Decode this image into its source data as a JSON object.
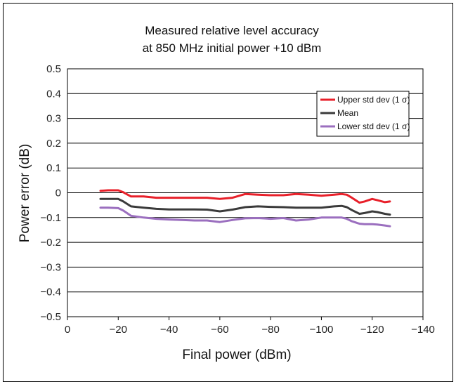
{
  "chart_data": {
    "type": "line",
    "title_lines": [
      "Measured relative level accuracy",
      "at 850 MHz initial power +10 dBm"
    ],
    "xlabel": "Final power (dBm)",
    "ylabel": "Power error (dB)",
    "xlim": [
      0,
      -140
    ],
    "ylim": [
      -0.5,
      0.5
    ],
    "x_ticks": [
      "0",
      "−20",
      "−40",
      "−60",
      "−80",
      "−100",
      "−120",
      "−140"
    ],
    "y_ticks": [
      "−0.5",
      "−0.4",
      "−0.3",
      "−0.2",
      "−0.1",
      "0",
      "0.1",
      "0.2",
      "0.3",
      "0.4",
      "0.5"
    ],
    "grid": "horizontal",
    "legend_position": "top-right",
    "x": [
      -13,
      -16,
      -20,
      -22,
      -25,
      -30,
      -35,
      -40,
      -45,
      -50,
      -55,
      -60,
      -65,
      -70,
      -75,
      -80,
      -85,
      -90,
      -95,
      -100,
      -105,
      -108,
      -110,
      -112,
      -115,
      -117,
      -120,
      -122,
      -125,
      -127
    ],
    "series": [
      {
        "name": "Upper std dev (1 σ)",
        "color": "#e8202a",
        "values": [
          0.008,
          0.01,
          0.01,
          0.002,
          -0.015,
          -0.015,
          -0.02,
          -0.02,
          -0.02,
          -0.02,
          -0.02,
          -0.025,
          -0.02,
          -0.005,
          -0.008,
          -0.01,
          -0.01,
          -0.005,
          -0.008,
          -0.012,
          -0.008,
          -0.005,
          -0.008,
          -0.02,
          -0.04,
          -0.035,
          -0.025,
          -0.03,
          -0.038,
          -0.035
        ]
      },
      {
        "name": "Mean",
        "color": "#3b3b3b",
        "values": [
          -0.025,
          -0.025,
          -0.025,
          -0.035,
          -0.055,
          -0.06,
          -0.065,
          -0.067,
          -0.067,
          -0.067,
          -0.068,
          -0.075,
          -0.068,
          -0.058,
          -0.055,
          -0.057,
          -0.058,
          -0.06,
          -0.06,
          -0.06,
          -0.055,
          -0.053,
          -0.058,
          -0.07,
          -0.085,
          -0.082,
          -0.075,
          -0.078,
          -0.085,
          -0.088
        ]
      },
      {
        "name": "Lower std dev (1 σ)",
        "color": "#9b6fbf",
        "values": [
          -0.06,
          -0.06,
          -0.062,
          -0.072,
          -0.093,
          -0.1,
          -0.105,
          -0.108,
          -0.11,
          -0.112,
          -0.112,
          -0.118,
          -0.11,
          -0.103,
          -0.102,
          -0.105,
          -0.102,
          -0.112,
          -0.108,
          -0.1,
          -0.1,
          -0.1,
          -0.105,
          -0.115,
          -0.125,
          -0.127,
          -0.127,
          -0.128,
          -0.132,
          -0.135
        ]
      }
    ]
  }
}
